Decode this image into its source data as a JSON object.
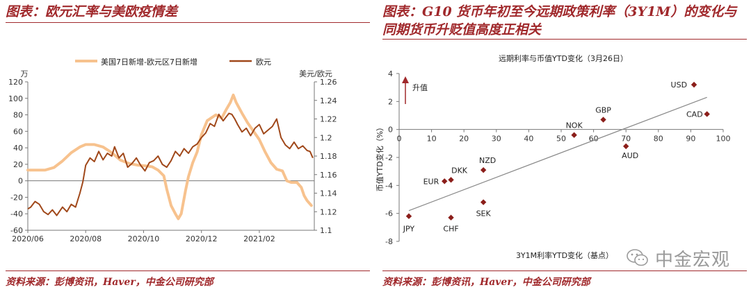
{
  "left": {
    "title": "图表：欧元汇率与美欧疫情差",
    "source": "资料来源：彭博资讯，Haver，中金公司研究部"
  },
  "right": {
    "title": "图表：G10 货币年初至今远期政策利率（3Y1M）的变化与同期货币升贬值高度正相关",
    "source": "资料来源：彭博资讯，Haver，中金公司研究部",
    "watermark": "中金宏观"
  },
  "colors": {
    "accent": "#a0282b",
    "orange": "#f7c28e",
    "brown": "#a0481a",
    "marker": "#8b1e1a"
  },
  "chart_data": [
    {
      "type": "line",
      "title": "",
      "legend": [
        "美国7日新增-欧元区7日新增",
        "欧元"
      ],
      "legend_position": "top",
      "y_left_unit": "万",
      "y_right_unit": "美元/欧元",
      "y_left_ticks": [
        "120",
        "100",
        "80",
        "60",
        "40",
        "20",
        "0",
        "-20",
        "-40",
        "-60"
      ],
      "y_right_ticks": [
        "1.26",
        "1.24",
        "1.22",
        "1.2",
        "1.18",
        "1.16",
        "1.14",
        "1.12",
        "1.1"
      ],
      "x_ticks": [
        "2020/06",
        "2020/08",
        "2020/10",
        "2020/12",
        "2021/02"
      ],
      "ylim_left": [
        -60,
        120
      ],
      "ylim_right": [
        1.1,
        1.26
      ],
      "x_unit": "months since 2020/06",
      "x_range": [
        0,
        9.9
      ],
      "series": [
        {
          "name": "美国7日新增-欧元区7日新增",
          "axis": "left",
          "points": [
            [
              0,
              13
            ],
            [
              0.3,
              13
            ],
            [
              0.6,
              13
            ],
            [
              0.9,
              16
            ],
            [
              1.2,
              24
            ],
            [
              1.5,
              34
            ],
            [
              1.8,
              41
            ],
            [
              2.0,
              44
            ],
            [
              2.3,
              44
            ],
            [
              2.6,
              41
            ],
            [
              2.9,
              34
            ],
            [
              3.2,
              25
            ],
            [
              3.5,
              21
            ],
            [
              3.8,
              19
            ],
            [
              4.1,
              18
            ],
            [
              4.3,
              17
            ],
            [
              4.5,
              13
            ],
            [
              4.7,
              6
            ],
            [
              4.8,
              -10
            ],
            [
              4.95,
              -30
            ],
            [
              5.1,
              -40
            ],
            [
              5.2,
              -46
            ],
            [
              5.3,
              -40
            ],
            [
              5.45,
              -12
            ],
            [
              5.55,
              5
            ],
            [
              5.7,
              22
            ],
            [
              5.85,
              35
            ],
            [
              6.0,
              56
            ],
            [
              6.2,
              73
            ],
            [
              6.5,
              80
            ],
            [
              6.7,
              76
            ],
            [
              6.85,
              86
            ],
            [
              7.0,
              95
            ],
            [
              7.1,
              104
            ],
            [
              7.2,
              95
            ],
            [
              7.4,
              82
            ],
            [
              7.6,
              70
            ],
            [
              7.8,
              60
            ],
            [
              8.0,
              50
            ],
            [
              8.2,
              35
            ],
            [
              8.4,
              22
            ],
            [
              8.6,
              14
            ],
            [
              8.8,
              12
            ],
            [
              8.95,
              0
            ],
            [
              9.1,
              -2
            ],
            [
              9.3,
              -2
            ],
            [
              9.45,
              -8
            ],
            [
              9.55,
              -18
            ],
            [
              9.65,
              -24
            ],
            [
              9.8,
              -30
            ]
          ]
        },
        {
          "name": "欧元",
          "axis": "right",
          "points": [
            [
              0,
              1.123
            ],
            [
              0.1,
              1.125
            ],
            [
              0.25,
              1.131
            ],
            [
              0.4,
              1.128
            ],
            [
              0.55,
              1.12
            ],
            [
              0.7,
              1.117
            ],
            [
              0.85,
              1.122
            ],
            [
              1.0,
              1.116
            ],
            [
              1.2,
              1.125
            ],
            [
              1.35,
              1.12
            ],
            [
              1.5,
              1.128
            ],
            [
              1.65,
              1.125
            ],
            [
              1.8,
              1.14
            ],
            [
              1.9,
              1.152
            ],
            [
              2.0,
              1.17
            ],
            [
              2.15,
              1.178
            ],
            [
              2.3,
              1.174
            ],
            [
              2.45,
              1.185
            ],
            [
              2.6,
              1.176
            ],
            [
              2.75,
              1.183
            ],
            [
              2.9,
              1.18
            ],
            [
              3.0,
              1.19
            ],
            [
              3.15,
              1.178
            ],
            [
              3.3,
              1.183
            ],
            [
              3.45,
              1.168
            ],
            [
              3.6,
              1.172
            ],
            [
              3.75,
              1.178
            ],
            [
              3.9,
              1.17
            ],
            [
              4.05,
              1.164
            ],
            [
              4.2,
              1.173
            ],
            [
              4.35,
              1.175
            ],
            [
              4.5,
              1.18
            ],
            [
              4.65,
              1.171
            ],
            [
              4.8,
              1.168
            ],
            [
              4.95,
              1.175
            ],
            [
              5.1,
              1.185
            ],
            [
              5.25,
              1.18
            ],
            [
              5.4,
              1.188
            ],
            [
              5.55,
              1.183
            ],
            [
              5.7,
              1.19
            ],
            [
              5.85,
              1.193
            ],
            [
              6.0,
              1.2
            ],
            [
              6.15,
              1.205
            ],
            [
              6.3,
              1.215
            ],
            [
              6.45,
              1.212
            ],
            [
              6.6,
              1.225
            ],
            [
              6.75,
              1.218
            ],
            [
              6.85,
              1.222
            ],
            [
              6.95,
              1.226
            ],
            [
              7.05,
              1.225
            ],
            [
              7.15,
              1.22
            ],
            [
              7.25,
              1.214
            ],
            [
              7.4,
              1.206
            ],
            [
              7.55,
              1.21
            ],
            [
              7.7,
              1.202
            ],
            [
              7.85,
              1.21
            ],
            [
              8.0,
              1.214
            ],
            [
              8.15,
              1.204
            ],
            [
              8.3,
              1.208
            ],
            [
              8.45,
              1.212
            ],
            [
              8.6,
              1.22
            ],
            [
              8.75,
              1.2
            ],
            [
              8.9,
              1.192
            ],
            [
              9.05,
              1.188
            ],
            [
              9.2,
              1.195
            ],
            [
              9.35,
              1.188
            ],
            [
              9.5,
              1.191
            ],
            [
              9.65,
              1.186
            ],
            [
              9.75,
              1.185
            ],
            [
              9.85,
              1.178
            ]
          ]
        }
      ]
    },
    {
      "type": "scatter",
      "title": "远期利率与币值YTD变化（3月26日）",
      "xlabel": "3Y1M利率YTD变化（基点）",
      "ylabel": "币值YTD变化（%）",
      "xlim": [
        0,
        100
      ],
      "ylim": [
        -8,
        4
      ],
      "x_ticks": [
        "0",
        "10",
        "20",
        "30",
        "40",
        "50",
        "60",
        "70",
        "80",
        "90",
        "100"
      ],
      "y_ticks": [
        "4",
        "2",
        "0",
        "-2",
        "-4",
        "-6",
        "-8"
      ],
      "annotation": "升值",
      "trendline": {
        "x0": 3,
        "y0": -5.8,
        "x1": 95,
        "y1": 2.3
      },
      "points": [
        {
          "label": "USD",
          "x": 91,
          "y": 3.2
        },
        {
          "label": "CAD",
          "x": 95,
          "y": 1.1
        },
        {
          "label": "GBP",
          "x": 63,
          "y": 0.7
        },
        {
          "label": "NOK",
          "x": 54,
          "y": -0.4
        },
        {
          "label": "AUD",
          "x": 70,
          "y": -1.2
        },
        {
          "label": "NZD",
          "x": 26,
          "y": -2.9
        },
        {
          "label": "DKK",
          "x": 16,
          "y": -3.6
        },
        {
          "label": "EUR",
          "x": 14,
          "y": -3.7
        },
        {
          "label": "SEK",
          "x": 26,
          "y": -5.2
        },
        {
          "label": "JPY",
          "x": 3,
          "y": -6.2
        },
        {
          "label": "CHF",
          "x": 16,
          "y": -6.3
        }
      ]
    }
  ]
}
